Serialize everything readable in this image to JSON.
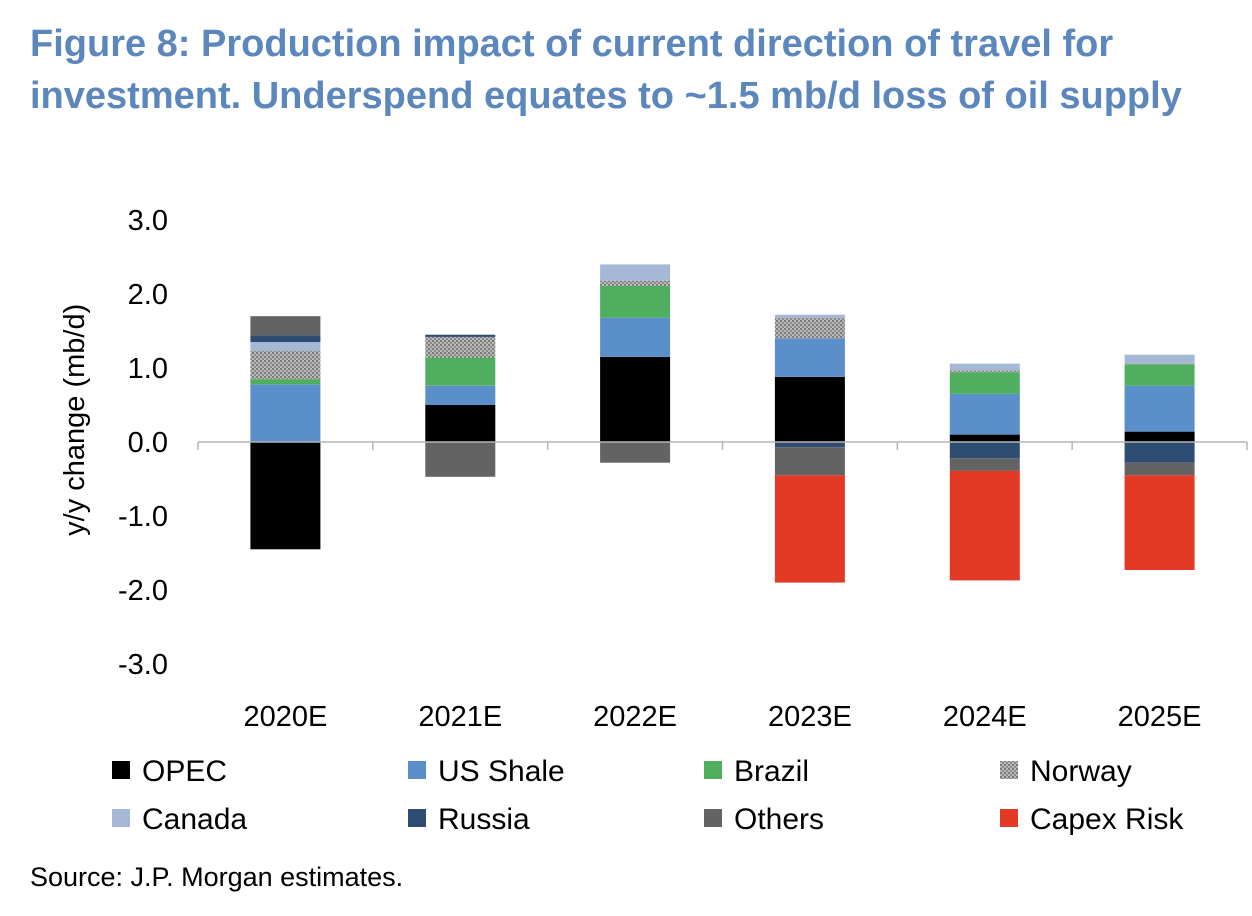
{
  "title": {
    "line1": "Figure 8: Production impact of current direction of travel for",
    "line2": "investment. Underspend equates to ~1.5 mb/d loss of oil supply"
  },
  "source": "Source: J.P. Morgan estimates.",
  "chart_data": {
    "type": "bar",
    "stacked": true,
    "title": "",
    "xlabel": "",
    "ylabel": "y/y change (mb/d)",
    "ylim": [
      -3.0,
      3.0
    ],
    "yticks": [
      "3.0",
      "2.0",
      "1.0",
      "0.0",
      "-1.0",
      "-2.0",
      "-3.0"
    ],
    "ytick_values": [
      3,
      2,
      1,
      0,
      -1,
      -2,
      -3
    ],
    "categories": [
      "2020E",
      "2021E",
      "2022E",
      "2023E",
      "2024E",
      "2025E"
    ],
    "grid": false,
    "legend_position": "bottom",
    "series": [
      {
        "name": "OPEC",
        "color": "#000000",
        "pattern": "solid",
        "values": [
          -1.45,
          0.5,
          1.15,
          0.88,
          0.1,
          0.14
        ]
      },
      {
        "name": "US Shale",
        "color": "#5b8fc9",
        "pattern": "solid",
        "values": [
          0.78,
          0.26,
          0.53,
          0.52,
          0.55,
          0.62
        ]
      },
      {
        "name": "Brazil",
        "color": "#4faf5e",
        "pattern": "solid",
        "values": [
          0.07,
          0.38,
          0.43,
          0.0,
          0.29,
          0.29
        ]
      },
      {
        "name": "Norway",
        "color": "#9a9a9a",
        "pattern": "dotted",
        "values": [
          0.38,
          0.28,
          0.07,
          0.28,
          0.03,
          0.01
        ]
      },
      {
        "name": "Canada",
        "color": "#a5b9d6",
        "pattern": "solid",
        "values": [
          0.12,
          0.0,
          0.22,
          0.04,
          0.09,
          0.12
        ]
      },
      {
        "name": "Russia",
        "color": "#2d4d73",
        "pattern": "solid",
        "values": [
          0.09,
          0.03,
          0.0,
          -0.07,
          -0.22,
          -0.28
        ]
      },
      {
        "name": "Others",
        "color": "#636363",
        "pattern": "solid",
        "values": [
          0.26,
          -0.47,
          -0.28,
          -0.38,
          -0.17,
          -0.17
        ]
      },
      {
        "name": "Capex Risk",
        "color": "#e23a25",
        "pattern": "solid",
        "values": [
          0.0,
          0.0,
          0.0,
          -1.45,
          -1.48,
          -1.28
        ]
      }
    ]
  }
}
